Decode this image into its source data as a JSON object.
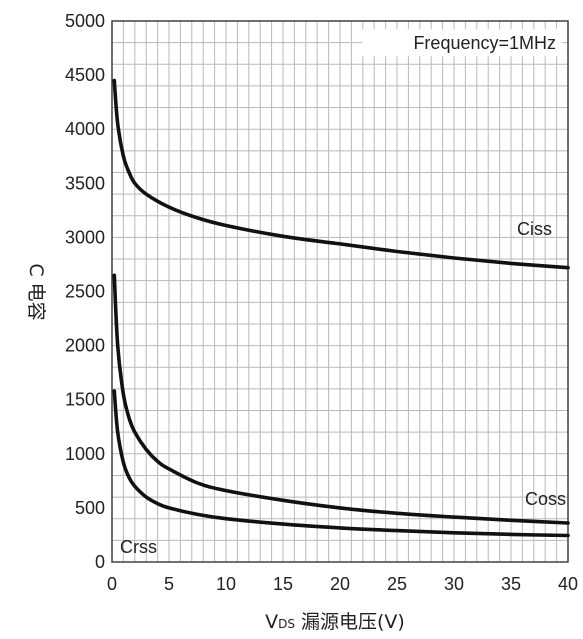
{
  "chart_data": {
    "type": "line",
    "xlabel_prefix": "V",
    "xlabel_sub": "DS",
    "xlabel_text": " 漏源电压(V)",
    "ylabel": "C 电容",
    "annotation": "Frequency=1MHz",
    "xlim": [
      0,
      40
    ],
    "ylim": [
      0,
      5000
    ],
    "x_ticks": [
      0,
      5,
      10,
      15,
      20,
      25,
      30,
      35,
      40
    ],
    "y_ticks": [
      0,
      500,
      1000,
      1500,
      2000,
      2500,
      3000,
      3500,
      4000,
      4500,
      5000
    ],
    "series": [
      {
        "name": "Ciss",
        "x": [
          0.2,
          0.5,
          1,
          1.5,
          2,
          3,
          5,
          7.5,
          10,
          15,
          20,
          25,
          30,
          35,
          40
        ],
        "y": [
          4450,
          4050,
          3750,
          3600,
          3500,
          3400,
          3280,
          3180,
          3110,
          3010,
          2940,
          2870,
          2810,
          2760,
          2720
        ]
      },
      {
        "name": "Coss",
        "x": [
          0.2,
          0.5,
          1,
          1.5,
          2,
          3,
          4,
          5,
          7.5,
          10,
          15,
          20,
          25,
          30,
          35,
          40
        ],
        "y": [
          2650,
          2000,
          1550,
          1330,
          1200,
          1040,
          930,
          860,
          730,
          660,
          570,
          500,
          450,
          415,
          385,
          360
        ]
      },
      {
        "name": "Crss",
        "x": [
          0.2,
          0.5,
          1,
          1.5,
          2,
          3,
          4,
          5,
          7.5,
          10,
          15,
          20,
          25,
          30,
          35,
          40
        ],
        "y": [
          1580,
          1200,
          920,
          780,
          700,
          600,
          540,
          500,
          440,
          400,
          350,
          315,
          290,
          270,
          255,
          245
        ]
      }
    ]
  }
}
